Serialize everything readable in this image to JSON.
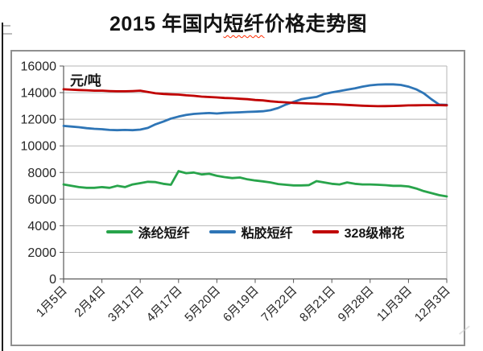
{
  "title": {
    "prefix": "2015 年国内",
    "marked": "短纤",
    "suffix": "价格走势图"
  },
  "chart_data": {
    "type": "line",
    "title": "2015 年国内短纤价格走势图",
    "unit_label": "元/吨",
    "xlabel": "",
    "ylabel": "元/吨",
    "ylim": [
      0,
      16000
    ],
    "yticks": [
      0,
      2000,
      4000,
      6000,
      8000,
      10000,
      12000,
      14000,
      16000
    ],
    "grid": "horizontal",
    "legend_position": "inside-bottom-center",
    "categories": [
      "1月5日",
      "2月4日",
      "3月17日",
      "4月17日",
      "5月20日",
      "6月19日",
      "7月22日",
      "8月21日",
      "9月28日",
      "11月3日",
      "12月3日"
    ],
    "points_per_tick": 5,
    "series": [
      {
        "name": "涤纶短纤",
        "color": "#28A44B",
        "values": [
          7100,
          7000,
          6900,
          6850,
          6850,
          6900,
          6850,
          7000,
          6900,
          7100,
          7200,
          7300,
          7280,
          7150,
          7080,
          8100,
          7950,
          8000,
          7850,
          7900,
          7750,
          7650,
          7580,
          7620,
          7480,
          7400,
          7330,
          7250,
          7130,
          7080,
          7030,
          7030,
          7050,
          7350,
          7250,
          7150,
          7100,
          7250,
          7150,
          7100,
          7100,
          7080,
          7050,
          7000,
          7000,
          6950,
          6800,
          6600,
          6450,
          6300,
          6200
        ]
      },
      {
        "name": "粘胶短纤",
        "color": "#2E75B6",
        "values": [
          11500,
          11450,
          11400,
          11330,
          11280,
          11250,
          11200,
          11180,
          11200,
          11180,
          11220,
          11350,
          11620,
          11820,
          12050,
          12200,
          12320,
          12400,
          12440,
          12470,
          12430,
          12480,
          12500,
          12520,
          12550,
          12570,
          12600,
          12680,
          12850,
          13100,
          13300,
          13500,
          13600,
          13680,
          13900,
          14020,
          14120,
          14220,
          14320,
          14450,
          14550,
          14600,
          14620,
          14620,
          14580,
          14450,
          14250,
          13950,
          13500,
          13100,
          13080
        ]
      },
      {
        "name": "328级棉花",
        "color": "#C00000",
        "values": [
          14250,
          14220,
          14200,
          14180,
          14150,
          14150,
          14120,
          14100,
          14100,
          14120,
          14150,
          14050,
          13950,
          13900,
          13870,
          13850,
          13800,
          13760,
          13700,
          13670,
          13640,
          13600,
          13580,
          13540,
          13510,
          13450,
          13420,
          13350,
          13300,
          13270,
          13230,
          13210,
          13190,
          13170,
          13150,
          13130,
          13110,
          13080,
          13050,
          13020,
          13000,
          12980,
          12990,
          13000,
          13020,
          13040,
          13050,
          13060,
          13060,
          13060,
          13050
        ]
      }
    ]
  }
}
